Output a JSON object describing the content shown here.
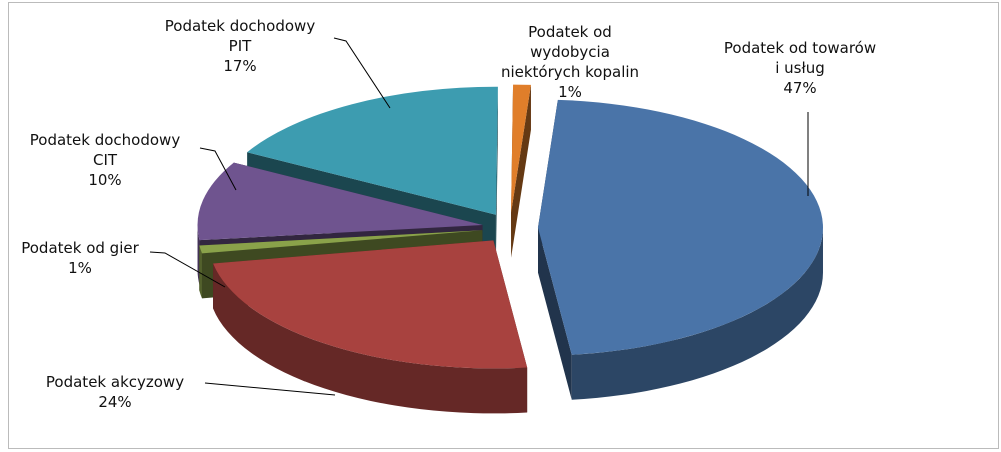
{
  "chart_data": {
    "type": "pie",
    "categories": [
      "Podatek od towarów\ni usług",
      "Podatek akcyzowy",
      "Podatek od gier",
      "Podatek dochodowy\nCIT",
      "Podatek dochodowy\nPIT",
      "Podatek od\nwydobycia\nniektórych kopalin"
    ],
    "values": [
      47,
      24,
      1,
      10,
      17,
      1
    ],
    "value_labels": [
      "47%",
      "24%",
      "1%",
      "10%",
      "17%",
      "1%"
    ],
    "colors": [
      "#4a74a8",
      "#a8423f",
      "#8aa24a",
      "#6f548f",
      "#3d9cb0",
      "#e07e2a"
    ]
  }
}
